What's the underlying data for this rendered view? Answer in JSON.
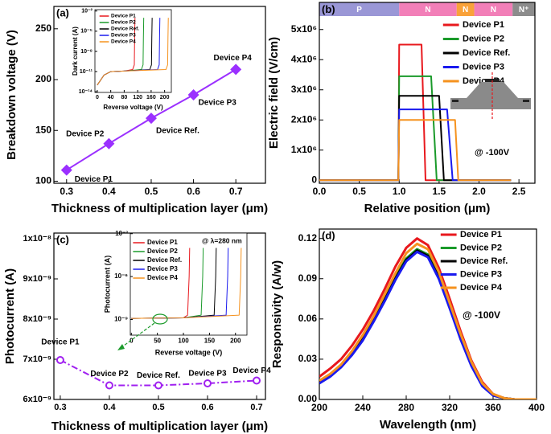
{
  "chart_data": [
    {
      "type": "line",
      "panel": "(a)",
      "y_label": "Breakdown voltage (V)",
      "x_label": "Thickness of multiplication layer (μm)",
      "x": [
        0.3,
        0.4,
        0.5,
        0.6,
        0.7
      ],
      "values": [
        111,
        137,
        162,
        185,
        210
      ],
      "color": "#9b30ff",
      "marker": "diamond",
      "point_labels": [
        "Device P1",
        "Device P2",
        "Device Ref.",
        "Device P3",
        "Device P4"
      ],
      "xlim": [
        0.27,
        0.77
      ],
      "ylim": [
        98,
        272
      ],
      "xticks": [
        0.3,
        0.4,
        0.5,
        0.6,
        0.7
      ],
      "yticks": [
        100,
        150,
        200,
        250
      ]
    },
    {
      "type": "line",
      "y_label": "Dark current (A)",
      "x_label": "Reverse voltage (V)",
      "log_y": true,
      "legend": true,
      "xlim": [
        -7,
        220
      ],
      "ylim": [
        8e-15,
        0.016
      ],
      "xticks": [
        0,
        40,
        80,
        120,
        160,
        200
      ],
      "yticks": [
        {
          "value": 1e-14,
          "label": "10⁻¹⁴"
        },
        {
          "value": 1e-11,
          "label": "10⁻¹¹"
        },
        {
          "value": 1e-08,
          "label": "10⁻⁸"
        },
        {
          "value": 1e-05,
          "label": "10⁻⁵"
        },
        {
          "value": 0.01,
          "label": "10⁻²"
        }
      ],
      "series": [
        {
          "name": "Device P1",
          "color": "#e8181d",
          "x": [
            0,
            20,
            40,
            80,
            105,
            110,
            111,
            112
          ],
          "values": [
            1e-13,
            3e-12,
            1e-11,
            1.2e-11,
            2e-11,
            1e-10,
            1e-06,
            0.001
          ]
        },
        {
          "name": "Device P2",
          "color": "#1a9a2a",
          "x": [
            0,
            20,
            40,
            80,
            131,
            136,
            137,
            138
          ],
          "values": [
            1e-13,
            3e-12,
            1e-11,
            1.2e-11,
            2e-11,
            1e-10,
            1e-06,
            0.001
          ]
        },
        {
          "name": "Device Ref.",
          "color": "#000000",
          "x": [
            0,
            20,
            40,
            80,
            156,
            161,
            162,
            163
          ],
          "values": [
            1e-13,
            3e-12,
            1e-11,
            1.2e-11,
            2e-11,
            1e-10,
            1e-06,
            0.001
          ]
        },
        {
          "name": "Device P3",
          "color": "#1a1aee",
          "x": [
            0,
            20,
            40,
            80,
            179,
            184,
            185,
            186
          ],
          "values": [
            1e-13,
            3e-12,
            1e-11,
            1.2e-11,
            2e-11,
            1e-10,
            1e-06,
            0.001
          ]
        },
        {
          "name": "Device P4",
          "color": "#f5921e",
          "x": [
            0,
            20,
            40,
            80,
            204,
            209,
            210,
            211
          ],
          "values": [
            1e-13,
            3e-12,
            1e-11,
            1.2e-11,
            2e-11,
            1e-10,
            1e-06,
            0.001
          ]
        }
      ]
    },
    {
      "type": "line",
      "panel": "(b)",
      "y_label": "Electric  field (V/cm)",
      "x_label": "Relative position (μm)",
      "legend": true,
      "annotation": "@ -100V",
      "xlim": [
        0,
        2.7
      ],
      "ylim": [
        -100000,
        5900000
      ],
      "xticks": [
        {
          "value": 0,
          "label": "0.0"
        },
        0.5,
        {
          "value": 1,
          "label": "1.0"
        },
        1.5,
        {
          "value": 2,
          "label": "2.0"
        },
        2.5
      ],
      "yticks": [
        0,
        {
          "value": 1000000,
          "label": "1x10⁶"
        },
        {
          "value": 2000000,
          "label": "2x10⁶"
        },
        {
          "value": 3000000,
          "label": "3x10⁶"
        },
        {
          "value": 4000000,
          "label": "4x10⁶"
        },
        {
          "value": 5000000,
          "label": "5x10⁶"
        }
      ],
      "regions": [
        {
          "label": "P",
          "from": 0,
          "to": 1.0,
          "color": "#9a97d6"
        },
        {
          "label": "N",
          "from": 1.0,
          "to": 1.72,
          "color": "#f27fb8"
        },
        {
          "label": "N",
          "from": 1.72,
          "to": 1.94,
          "color": "#f9a23a"
        },
        {
          "label": "N",
          "from": 1.94,
          "to": 2.42,
          "color": "#f27fb8"
        },
        {
          "label": "N⁺",
          "from": 2.42,
          "to": 2.7,
          "color": "#8c8c8c"
        }
      ],
      "series": [
        {
          "name": "Device P1",
          "color": "#e8181d",
          "x": [
            0,
            0.99,
            1.0,
            1.28,
            1.33,
            1.4,
            2.4
          ],
          "values": [
            0,
            0,
            4500000,
            4500000,
            0,
            0,
            0
          ]
        },
        {
          "name": "Device P2",
          "color": "#1a9a2a",
          "x": [
            0,
            0.99,
            1.0,
            1.4,
            1.47,
            1.55,
            2.4
          ],
          "values": [
            0,
            0,
            3450000,
            3450000,
            0,
            0,
            0
          ]
        },
        {
          "name": "Device Ref.",
          "color": "#000000",
          "x": [
            0,
            0.99,
            1.0,
            1.5,
            1.56,
            1.65,
            2.4
          ],
          "values": [
            0,
            0,
            2800000,
            2800000,
            0,
            0,
            0
          ]
        },
        {
          "name": "Device P3",
          "color": "#1a1aee",
          "x": [
            0,
            0.99,
            1.0,
            1.6,
            1.67,
            1.75,
            2.4
          ],
          "values": [
            0,
            0,
            2350000,
            2350000,
            0,
            0,
            0
          ]
        },
        {
          "name": "Device P4",
          "color": "#f5921e",
          "x": [
            0,
            0.99,
            1.0,
            1.7,
            1.74,
            1.8,
            2.4
          ],
          "values": [
            0,
            0,
            2000000,
            2000000,
            0,
            0,
            0
          ]
        }
      ]
    },
    {
      "type": "line",
      "panel": "(c)",
      "y_label": "Photocurrent (A)",
      "x_label": "Thickness of multiplication layer (μm)",
      "x": [
        0.3,
        0.4,
        0.5,
        0.6,
        0.7
      ],
      "values": [
        6.98e-09,
        6.35e-09,
        6.35e-09,
        6.4e-09,
        6.47e-09
      ],
      "color": "#a020f0",
      "marker": "circle",
      "line_style": "dashdot",
      "point_labels": [
        "Device P1",
        "Device P2",
        "Device Ref.",
        "Device P3",
        "Device P4"
      ],
      "xlim": [
        0.287,
        0.718
      ],
      "ylim": [
        6e-09,
        1.014e-08
      ],
      "xticks": [
        0.3,
        0.4,
        0.5,
        0.6,
        0.7
      ],
      "yticks": [
        {
          "value": 6e-09,
          "label": "6x10⁻⁹"
        },
        {
          "value": 7e-09,
          "label": "7x10⁻⁹"
        },
        {
          "value": 8e-09,
          "label": "8x10⁻⁹"
        },
        {
          "value": 9e-09,
          "label": "9x10⁻⁹"
        },
        {
          "value": 1e-08,
          "label": "1x10⁻⁸"
        }
      ]
    },
    {
      "type": "line",
      "y_label": "Photocurrent (A)",
      "x_label": "Reverse voltage (V)",
      "log_y": true,
      "legend": true,
      "annotation": "@ λ=280 nm",
      "xlim": [
        -2,
        222
      ],
      "ylim": [
        8e-11,
        0.0011
      ],
      "xticks": [
        0,
        50,
        100,
        150,
        200
      ],
      "yticks": [
        {
          "value": 1e-09,
          "label": "10⁻⁹"
        },
        {
          "value": 1e-06,
          "label": "10⁻⁶"
        },
        {
          "value": 0.001,
          "label": "10⁻³"
        }
      ],
      "series": [
        {
          "name": "Device P1",
          "color": "#e8181d",
          "x": [
            0,
            100,
            108,
            111,
            112
          ],
          "values": [
            1.2e-09,
            1.3e-09,
            2e-09,
            1e-06,
            0.0001
          ]
        },
        {
          "name": "Device P2",
          "color": "#1a9a2a",
          "x": [
            0,
            100,
            134,
            137,
            138
          ],
          "values": [
            1.2e-09,
            1.3e-09,
            2e-09,
            1e-06,
            0.0001
          ]
        },
        {
          "name": "Device Ref.",
          "color": "#000000",
          "x": [
            0,
            100,
            159,
            162,
            163
          ],
          "values": [
            1.2e-09,
            1.3e-09,
            2e-09,
            1e-06,
            0.0001
          ]
        },
        {
          "name": "Device P3",
          "color": "#1a1aee",
          "x": [
            0,
            100,
            182,
            185,
            186
          ],
          "values": [
            1.2e-09,
            1.3e-09,
            2e-09,
            1e-06,
            0.0001
          ]
        },
        {
          "name": "Device P4",
          "color": "#f5921e",
          "x": [
            0,
            100,
            207,
            210,
            211
          ],
          "values": [
            1.2e-09,
            1.3e-09,
            2e-09,
            1e-06,
            0.0001
          ]
        }
      ]
    },
    {
      "type": "line",
      "panel": "(d)",
      "y_label": "Responsivity (A/w)",
      "x_label": "Wavelength (nm)",
      "legend": true,
      "annotation": "@ -100V",
      "line_width": 3,
      "x": [
        200,
        210,
        220,
        230,
        240,
        250,
        260,
        270,
        280,
        290,
        300,
        310,
        320,
        330,
        340,
        350,
        360,
        370,
        380,
        390,
        400
      ],
      "xlim": [
        200,
        400
      ],
      "ylim": [
        0,
        0.127
      ],
      "xticks": [
        200,
        240,
        280,
        320,
        360,
        400
      ],
      "yticks": [
        {
          "value": 0,
          "label": "0.00"
        },
        0.03,
        0.06,
        0.09,
        0.12
      ],
      "series": [
        {
          "name": "Device P1",
          "color": "#e8181d",
          "values": [
            0.017,
            0.023,
            0.03,
            0.04,
            0.052,
            0.066,
            0.082,
            0.099,
            0.113,
            0.12,
            0.115,
            0.098,
            0.075,
            0.051,
            0.029,
            0.013,
            0.004,
            0.001,
            0,
            0,
            0
          ]
        },
        {
          "name": "Device P2",
          "color": "#1a9a2a",
          "values": [
            0.013,
            0.018,
            0.025,
            0.034,
            0.046,
            0.06,
            0.075,
            0.091,
            0.105,
            0.112,
            0.108,
            0.092,
            0.07,
            0.047,
            0.026,
            0.011,
            0.003,
            0.001,
            0,
            0,
            0
          ]
        },
        {
          "name": "Device Ref.",
          "color": "#000000",
          "values": [
            0.013,
            0.018,
            0.025,
            0.034,
            0.045,
            0.059,
            0.074,
            0.09,
            0.104,
            0.111,
            0.107,
            0.091,
            0.069,
            0.046,
            0.026,
            0.011,
            0.003,
            0.001,
            0,
            0,
            0
          ]
        },
        {
          "name": "Device P3",
          "color": "#1a1aee",
          "values": [
            0.012,
            0.017,
            0.024,
            0.033,
            0.044,
            0.058,
            0.073,
            0.089,
            0.103,
            0.11,
            0.106,
            0.09,
            0.068,
            0.045,
            0.025,
            0.01,
            0.003,
            0.001,
            0,
            0,
            0
          ]
        },
        {
          "name": "Device P4",
          "color": "#f5921e",
          "values": [
            0.014,
            0.019,
            0.026,
            0.036,
            0.048,
            0.062,
            0.078,
            0.094,
            0.109,
            0.116,
            0.112,
            0.095,
            0.072,
            0.049,
            0.028,
            0.012,
            0.004,
            0.001,
            0,
            0,
            0
          ]
        }
      ]
    }
  ]
}
